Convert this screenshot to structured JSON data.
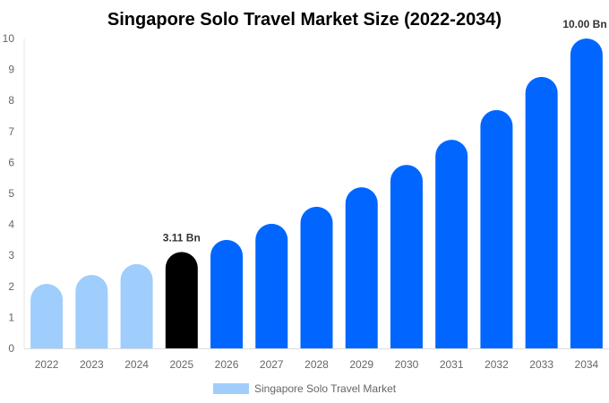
{
  "chart_data": {
    "type": "bar",
    "title": "Singapore Solo Travel Market Size (2022-2034)",
    "xlabel": "",
    "ylabel": "",
    "ylim": [
      0,
      10
    ],
    "yticks": [
      "0",
      "1",
      "2",
      "3",
      "4",
      "5",
      "6",
      "7",
      "8",
      "9",
      "10"
    ],
    "categories": [
      "2022",
      "2023",
      "2024",
      "2025",
      "2026",
      "2027",
      "2028",
      "2029",
      "2030",
      "2031",
      "2032",
      "2033",
      "2034"
    ],
    "series": [
      {
        "name": "Singapore Solo Travel Market",
        "values": [
          2.08,
          2.37,
          2.72,
          3.11,
          3.5,
          4.02,
          4.57,
          5.2,
          5.92,
          6.73,
          7.69,
          8.76,
          10.0
        ]
      }
    ],
    "bar_colors": [
      "#9fcdfc",
      "#9fcdfc",
      "#9fcdfc",
      "#000000",
      "#0066ff",
      "#0066ff",
      "#0066ff",
      "#0066ff",
      "#0066ff",
      "#0066ff",
      "#0066ff",
      "#0066ff",
      "#0066ff"
    ],
    "data_labels": [
      {
        "category": "2025",
        "text": "3.11 Bn"
      },
      {
        "category": "2034",
        "text": "10.00 Bn"
      }
    ],
    "legend": {
      "label": "Singapore Solo Travel Market",
      "color": "#9fcdfc",
      "position": "bottom-center"
    },
    "grid": false
  }
}
